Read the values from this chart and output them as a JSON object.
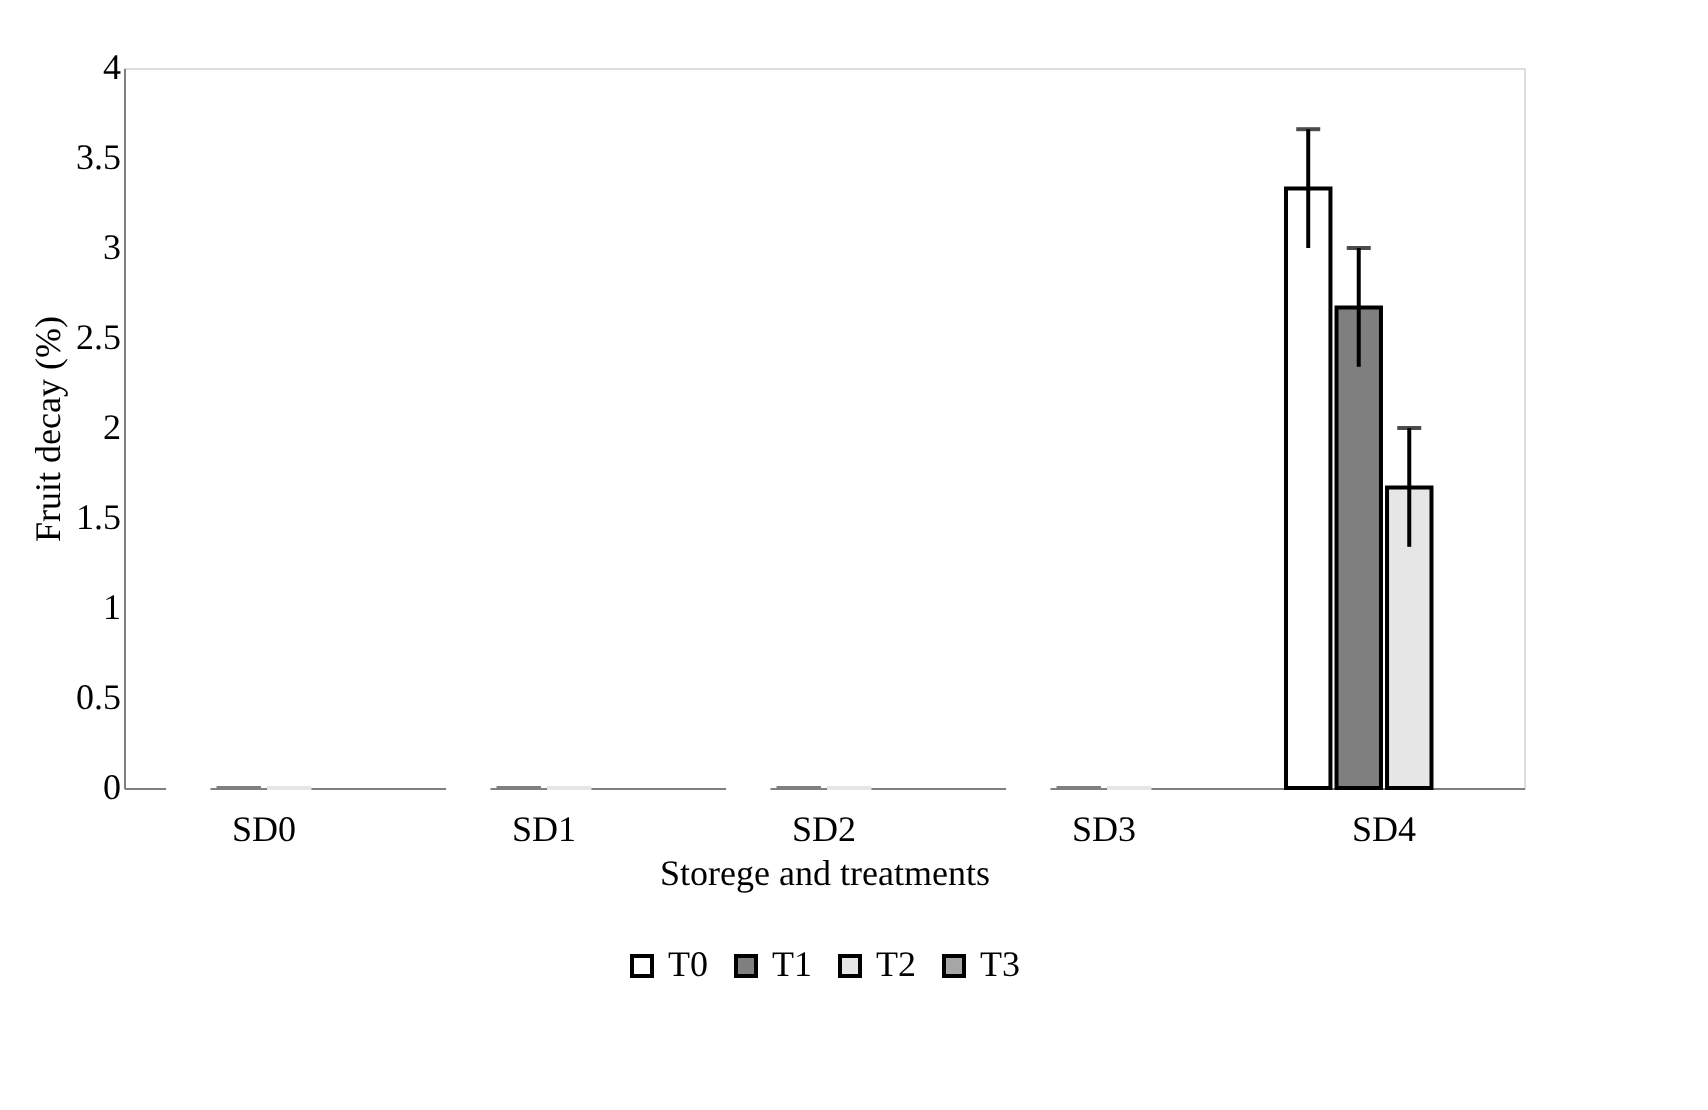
{
  "chart_data": {
    "type": "bar",
    "xlabel": "Storege and treatments",
    "ylabel": "Fruit decay (%)",
    "categories": [
      "SD0",
      "SD1",
      "SD2",
      "SD3",
      "SD4"
    ],
    "series": [
      {
        "name": "T0",
        "color": "#ffffff",
        "values": [
          0,
          0,
          0,
          0,
          3.33
        ],
        "errors": [
          null,
          null,
          null,
          null,
          0.33
        ]
      },
      {
        "name": "T1",
        "color": "#7f7f7f",
        "values": [
          0,
          0,
          0,
          0,
          2.67
        ],
        "errors": [
          null,
          null,
          null,
          null,
          0.33
        ]
      },
      {
        "name": "T2",
        "color": "#e6e6e6",
        "values": [
          0,
          0,
          0,
          0,
          1.67
        ],
        "errors": [
          null,
          null,
          null,
          null,
          0.33
        ]
      },
      {
        "name": "T3",
        "color": "#a6a6a6",
        "values": [
          null,
          null,
          null,
          null,
          null
        ]
      }
    ],
    "ylim": [
      0,
      4
    ],
    "yticks": [
      0,
      0.5,
      1,
      1.5,
      2,
      2.5,
      3,
      3.5,
      4
    ],
    "grid": false,
    "legend": "bottom"
  }
}
